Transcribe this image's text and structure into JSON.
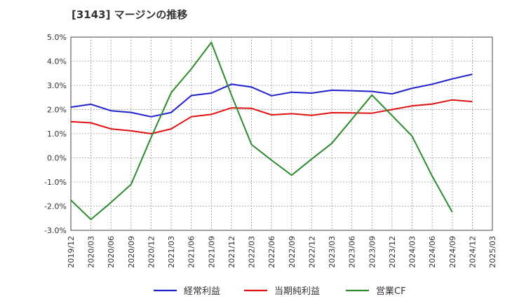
{
  "title": "[3143]  マージンの推移",
  "chart_data": {
    "type": "line",
    "title": "[3143]  マージンの推移",
    "xlabel": "",
    "ylabel": "",
    "ylim": [
      -3.0,
      5.0
    ],
    "yticks": [
      "5.0%",
      "4.0%",
      "3.0%",
      "2.0%",
      "1.0%",
      "0.0%",
      "-1.0%",
      "-2.0%",
      "-3.0%"
    ],
    "x": [
      "2019/12",
      "2020/03",
      "2020/06",
      "2020/09",
      "2020/12",
      "2021/03",
      "2021/06",
      "2021/09",
      "2021/12",
      "2022/03",
      "2022/06",
      "2022/09",
      "2022/12",
      "2023/03",
      "2023/06",
      "2023/09",
      "2023/12",
      "2024/03",
      "2024/06",
      "2024/09",
      "2024/12",
      "2025/03"
    ],
    "grid": true,
    "legend_position": "bottom",
    "series": [
      {
        "name": "経常利益",
        "color": "#1f1fcc",
        "values": [
          2.1,
          2.22,
          1.95,
          1.88,
          1.7,
          1.88,
          2.58,
          2.68,
          3.05,
          2.93,
          2.57,
          2.72,
          2.68,
          2.8,
          2.78,
          2.75,
          2.65,
          2.88,
          3.05,
          3.27,
          3.46,
          null
        ]
      },
      {
        "name": "当期純利益",
        "color": "#e01010",
        "values": [
          1.5,
          1.45,
          1.2,
          1.12,
          1.0,
          1.2,
          1.7,
          1.8,
          2.07,
          2.05,
          1.78,
          1.83,
          1.76,
          1.87,
          1.86,
          1.85,
          2.0,
          2.15,
          2.23,
          2.4,
          2.33,
          null
        ]
      },
      {
        "name": "営業CF",
        "color": "#2e8b2e",
        "values": [
          -1.75,
          -2.55,
          -1.85,
          -1.1,
          0.85,
          2.7,
          3.68,
          4.78,
          2.6,
          0.55,
          -0.1,
          -0.72,
          -0.05,
          0.6,
          1.6,
          2.6,
          1.75,
          0.9,
          -0.75,
          -2.25,
          null,
          null
        ]
      }
    ]
  }
}
